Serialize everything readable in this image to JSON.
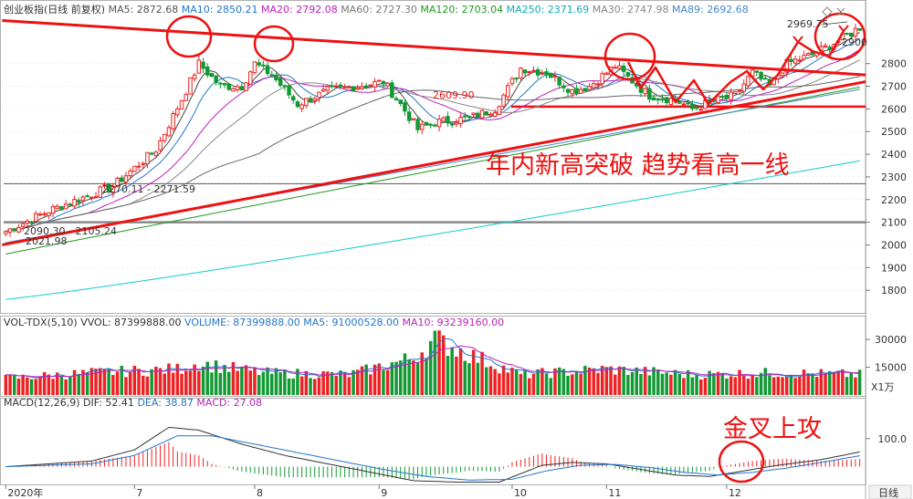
{
  "main_header": {
    "name": "创业板指(日线 前复权)",
    "items": [
      {
        "label": "MA5: 2872.68",
        "color": "#555555"
      },
      {
        "label": "MA10: 2850.21",
        "color": "#2277cc"
      },
      {
        "label": "MA20: 2792.08",
        "color": "#bb22bb"
      },
      {
        "label": "MA60: 2727.30",
        "color": "#777777"
      },
      {
        "label": "MA120: 2703.04",
        "color": "#229922"
      },
      {
        "label": "MA250: 2371.69",
        "color": "#11aabb"
      },
      {
        "label": "MA30: 2747.98",
        "color": "#888888"
      },
      {
        "label": "MA89: 2692.68",
        "color": "#4488cc"
      }
    ]
  },
  "vol_header": {
    "name": "VOL-TDX(5,10)",
    "items": [
      {
        "label": "VVOL: 87399888.00",
        "color": "#333333"
      },
      {
        "label": "VOLUME: 87399888.00",
        "color": "#2277cc"
      },
      {
        "label": "MA5: 91000528.00",
        "color": "#2277cc"
      },
      {
        "label": "MA10: 93239160.00",
        "color": "#bb22bb"
      }
    ]
  },
  "macd_header": {
    "name": "MACD(12,26,9)",
    "items": [
      {
        "label": "DIF: 52.41",
        "color": "#333333"
      },
      {
        "label": "DEA: 38.87",
        "color": "#2277cc"
      },
      {
        "label": "MACD: 27.08",
        "color": "#bb22bb"
      }
    ]
  },
  "annotations": {
    "breakout_text": "年内新高突破 趋势看高一线",
    "golden_cross_text": "金叉上攻",
    "low_label": "2021.98",
    "low_range_label": "2090.30 - 2105.24",
    "mid_range_label": "2270.11 - 2271.59",
    "level_label": "2609.90",
    "high_label": "2969.75",
    "last_label": "2900"
  },
  "x_axis": {
    "labels": [
      "2020年",
      "7",
      "8",
      "9",
      "10",
      "11",
      "12"
    ],
    "period_button": "日线"
  },
  "vol_unit": "X1万",
  "colors": {
    "up": "#ee2222",
    "down": "#119933",
    "annotation": "#ee1111"
  },
  "chart_data": [
    {
      "type": "candlestick",
      "title": "创业板指(日线 前复权)",
      "ylim": [
        1700,
        3000
      ],
      "y_ticks": [
        1800,
        1900,
        2000,
        2100,
        2200,
        2300,
        2400,
        2500,
        2600,
        2700,
        2800
      ],
      "x_month_labels": [
        "2020年",
        "7",
        "8",
        "9",
        "10",
        "11",
        "12"
      ],
      "month_start_index": [
        0,
        30,
        58,
        87,
        118,
        140,
        168
      ],
      "bars": 200,
      "close_path": [
        [
          0,
          2060
        ],
        [
          10,
          2150
        ],
        [
          25,
          2260
        ],
        [
          35,
          2420
        ],
        [
          42,
          2680
        ],
        [
          45,
          2800
        ],
        [
          50,
          2700
        ],
        [
          55,
          2700
        ],
        [
          58,
          2800
        ],
        [
          62,
          2750
        ],
        [
          68,
          2620
        ],
        [
          75,
          2680
        ],
        [
          82,
          2700
        ],
        [
          88,
          2720
        ],
        [
          92,
          2620
        ],
        [
          96,
          2510
        ],
        [
          100,
          2540
        ],
        [
          108,
          2560
        ],
        [
          114,
          2600
        ],
        [
          120,
          2780
        ],
        [
          126,
          2760
        ],
        [
          132,
          2680
        ],
        [
          136,
          2700
        ],
        [
          142,
          2790
        ],
        [
          148,
          2690
        ],
        [
          150,
          2660
        ],
        [
          156,
          2640
        ],
        [
          160,
          2600
        ],
        [
          166,
          2640
        ],
        [
          170,
          2660
        ],
        [
          174,
          2760
        ],
        [
          178,
          2700
        ],
        [
          182,
          2800
        ],
        [
          188,
          2840
        ],
        [
          194,
          2900
        ],
        [
          199,
          2960
        ]
      ],
      "highs_lows_marked": {
        "low": 2021.98,
        "high": 2969.75
      },
      "horizontal_levels": [
        2100,
        2270,
        2610
      ],
      "trendlines": [
        {
          "from": [
            0,
            2990
          ],
          "to": [
            199,
            2750
          ]
        },
        {
          "from": [
            0,
            2000
          ],
          "to": [
            199,
            2720
          ]
        }
      ],
      "moving_averages": [
        {
          "name": "MA5",
          "last": 2872.68
        },
        {
          "name": "MA10",
          "last": 2850.21
        },
        {
          "name": "MA20",
          "last": 2792.08
        },
        {
          "name": "MA60",
          "last": 2727.3
        },
        {
          "name": "MA120",
          "last": 2703.04
        },
        {
          "name": "MA250",
          "last": 2371.69
        },
        {
          "name": "MA30",
          "last": 2747.98
        },
        {
          "name": "MA89",
          "last": 2692.68
        }
      ]
    },
    {
      "type": "bar",
      "title": "VOL-TDX(5,10)",
      "ylim": [
        0,
        35000
      ],
      "y_ticks": [
        15000,
        30000
      ],
      "unit": "X1万",
      "volume_path": [
        [
          0,
          9000
        ],
        [
          20,
          12000
        ],
        [
          40,
          14000
        ],
        [
          45,
          17000
        ],
        [
          60,
          12000
        ],
        [
          80,
          11000
        ],
        [
          95,
          20000
        ],
        [
          100,
          30000
        ],
        [
          110,
          20000
        ],
        [
          120,
          11000
        ],
        [
          140,
          14000
        ],
        [
          160,
          11000
        ],
        [
          180,
          12000
        ],
        [
          199,
          11000
        ]
      ],
      "last": {
        "volume": 87399888.0,
        "ma5": 91000528.0,
        "ma10": 93239160.0
      }
    },
    {
      "type": "line",
      "title": "MACD(12,26,9)",
      "ylim": [
        -60,
        200
      ],
      "y_ticks": [
        100
      ],
      "dif_path": [
        [
          0,
          0
        ],
        [
          20,
          20
        ],
        [
          30,
          60
        ],
        [
          38,
          140
        ],
        [
          45,
          130
        ],
        [
          55,
          80
        ],
        [
          65,
          40
        ],
        [
          75,
          10
        ],
        [
          85,
          -20
        ],
        [
          95,
          -50
        ],
        [
          105,
          -55
        ],
        [
          115,
          -55
        ],
        [
          125,
          5
        ],
        [
          132,
          15
        ],
        [
          140,
          10
        ],
        [
          148,
          -10
        ],
        [
          156,
          -30
        ],
        [
          164,
          -35
        ],
        [
          172,
          -15
        ],
        [
          180,
          5
        ],
        [
          190,
          25
        ],
        [
          199,
          52.41
        ]
      ],
      "dea_path": [
        [
          0,
          0
        ],
        [
          20,
          10
        ],
        [
          30,
          40
        ],
        [
          40,
          110
        ],
        [
          48,
          110
        ],
        [
          58,
          80
        ],
        [
          68,
          50
        ],
        [
          78,
          20
        ],
        [
          88,
          -10
        ],
        [
          98,
          -35
        ],
        [
          108,
          -48
        ],
        [
          118,
          -45
        ],
        [
          126,
          -15
        ],
        [
          134,
          5
        ],
        [
          142,
          8
        ],
        [
          150,
          -3
        ],
        [
          158,
          -20
        ],
        [
          166,
          -30
        ],
        [
          174,
          -20
        ],
        [
          182,
          -5
        ],
        [
          190,
          15
        ],
        [
          199,
          38.87
        ]
      ],
      "last": {
        "dif": 52.41,
        "dea": 38.87,
        "macd": 27.08
      }
    }
  ]
}
